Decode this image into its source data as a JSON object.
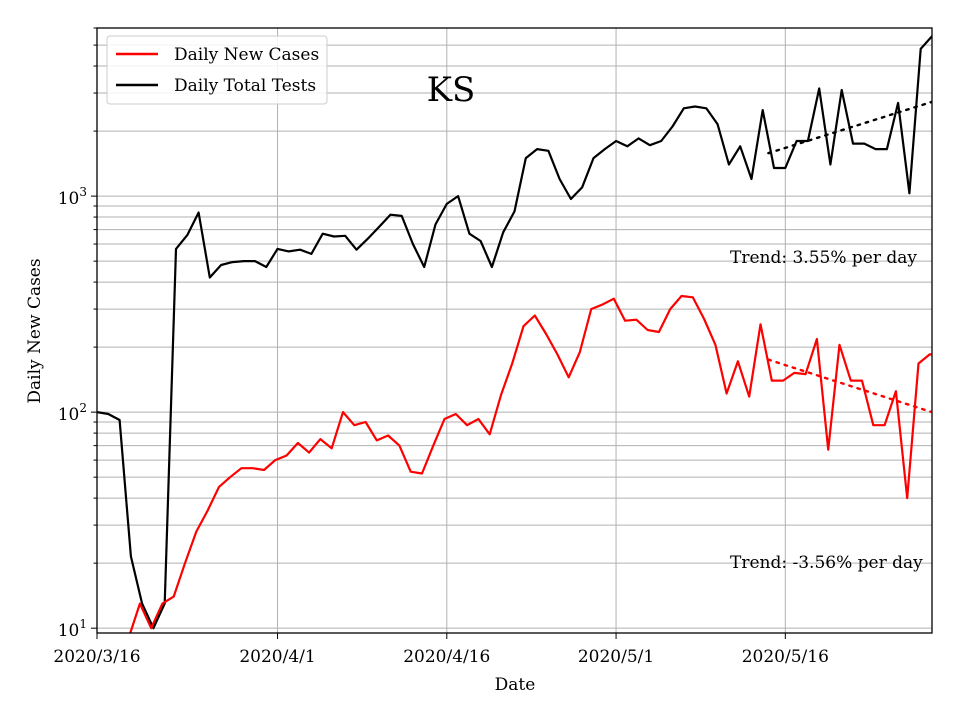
{
  "chart_data": {
    "type": "line",
    "title": "KS",
    "xlabel": "Date",
    "ylabel": "Daily New Cases",
    "yscale": "log",
    "ylim": [
      9.5,
      6000
    ],
    "x_tick_labels": [
      "2020/3/16",
      "2020/4/1",
      "2020/4/16",
      "2020/5/1",
      "2020/5/16"
    ],
    "x_tick_days": [
      0,
      16,
      31,
      46,
      61
    ],
    "y_tick_labels": [
      {
        "base": "10",
        "exp": "1",
        "value": 10
      },
      {
        "base": "10",
        "exp": "2",
        "value": 100
      },
      {
        "base": "10",
        "exp": "3",
        "value": 1000
      }
    ],
    "xlim_days": [
      0,
      74
    ],
    "grid": true,
    "legend_position": "upper-left",
    "series": [
      {
        "name": "Daily New Cases",
        "color": "#ff0000",
        "x": [
          2.8,
          3.8,
          4.8,
          5.8,
          6.8,
          7.8,
          8.8,
          9.8,
          10.8,
          11.8,
          12.8,
          13.8,
          14.8,
          15.8,
          16.8,
          17.8,
          18.8,
          19.8,
          20.8,
          21.8,
          22.8,
          23.8,
          24.8,
          25.8,
          26.8,
          27.8,
          28.8,
          29.8,
          30.8,
          31.8,
          32.8,
          33.8,
          34.8,
          35.8,
          36.8,
          37.8,
          38.8,
          39.8,
          40.8,
          41.8,
          42.8,
          43.8,
          44.8,
          45.8,
          46.8,
          47.8,
          48.8,
          49.8,
          50.8,
          51.8,
          52.8,
          53.8,
          54.8,
          55.8,
          56.8,
          57.8,
          58.8,
          59.8,
          60.8,
          61.8,
          62.8,
          63.8,
          64.8,
          65.8,
          66.8,
          67.8,
          68.8,
          69.8,
          70.8,
          71.8,
          72.8,
          73.8,
          74.0
        ],
        "values": [
          9,
          13,
          10,
          13,
          14,
          20,
          28,
          35,
          45,
          50,
          55,
          55,
          54,
          60,
          63,
          72,
          65,
          75,
          68,
          100,
          87,
          90,
          74,
          78,
          70,
          53,
          52,
          70,
          93,
          98,
          87,
          93,
          79,
          120,
          168,
          250,
          280,
          230,
          185,
          145,
          190,
          300,
          315,
          335,
          265,
          268,
          240,
          235,
          300,
          345,
          340,
          270,
          205,
          122,
          172,
          118,
          255,
          140,
          140,
          152,
          150,
          218,
          67,
          205,
          140,
          140,
          87,
          87,
          125,
          40,
          168,
          185,
          185
        ]
      },
      {
        "name": "Daily Total Tests",
        "color": "#000000",
        "x": [
          0,
          1,
          2,
          3,
          4,
          5,
          6,
          7,
          8,
          9,
          10,
          11,
          12,
          13,
          14,
          15,
          16,
          17,
          18,
          19,
          20,
          21,
          22,
          23,
          24,
          25,
          26,
          27,
          28,
          29,
          30,
          31,
          32,
          33,
          34,
          35,
          36,
          37,
          38,
          39,
          40,
          41,
          42,
          43,
          44,
          45,
          46,
          47,
          48,
          49,
          50,
          51,
          52,
          53,
          54,
          55,
          56,
          57,
          58,
          59,
          60,
          61,
          62,
          63,
          64,
          65,
          66,
          67,
          68,
          69,
          70,
          71,
          72,
          73,
          74
        ],
        "values": [
          100,
          98,
          92,
          21.5,
          13,
          10,
          13,
          570,
          660,
          840,
          420,
          480,
          495,
          500,
          500,
          470,
          570,
          555,
          565,
          540,
          670,
          650,
          655,
          565,
          635,
          720,
          820,
          810,
          600,
          470,
          740,
          920,
          1000,
          670,
          620,
          470,
          680,
          850,
          1500,
          1650,
          1620,
          1200,
          970,
          1100,
          1500,
          1650,
          1800,
          1700,
          1850,
          1720,
          1800,
          2100,
          2550,
          2600,
          2550,
          2150,
          1400,
          1700,
          1200,
          2500,
          1350,
          1350,
          1800,
          1800,
          3150,
          1400,
          3100,
          1750,
          1750,
          1650,
          1650,
          2700,
          1030,
          4800,
          5500
        ]
      }
    ],
    "trend_lines": [
      {
        "series": "Daily Total Tests",
        "color": "#000000",
        "x": [
          59.5,
          74.0
        ],
        "values": [
          1580,
          2730
        ],
        "label": "Trend: 3.55% per day"
      },
      {
        "series": "Daily New Cases",
        "color": "#ff0000",
        "x": [
          59.5,
          74.0
        ],
        "values": [
          175,
          100
        ],
        "label": "Trend: -3.56% per day"
      }
    ]
  }
}
